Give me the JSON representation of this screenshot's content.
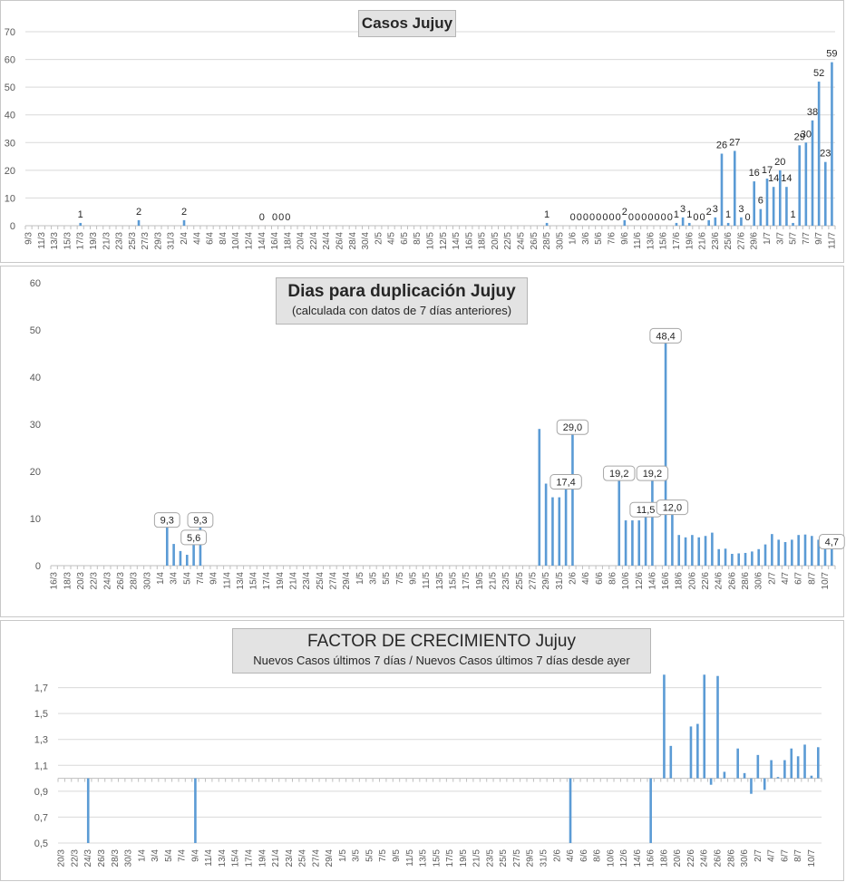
{
  "colors": {
    "bar": "#5b9bd5",
    "grid": "#d9d9d9",
    "axis_text": "#595959"
  },
  "chart_data": [
    {
      "type": "bar",
      "title": "Casos Jujuy",
      "ylim": [
        0,
        70
      ],
      "yticks": [
        0,
        10,
        20,
        30,
        40,
        50,
        60,
        70
      ],
      "grid": true,
      "x_start": "9/3",
      "x_end": "11/7",
      "xtick_labels": [
        "9/3",
        "11/3",
        "13/3",
        "15/3",
        "17/3",
        "19/3",
        "21/3",
        "23/3",
        "25/3",
        "27/3",
        "29/3",
        "31/3",
        "2/4",
        "4/4",
        "6/4",
        "8/4",
        "10/4",
        "12/4",
        "14/4",
        "16/4",
        "18/4",
        "20/4",
        "22/4",
        "24/4",
        "26/4",
        "28/4",
        "30/4",
        "2/5",
        "4/5",
        "6/5",
        "8/5",
        "10/5",
        "12/5",
        "14/5",
        "16/5",
        "18/5",
        "20/5",
        "22/5",
        "24/5",
        "26/5",
        "28/5",
        "30/5",
        "1/6",
        "3/6",
        "5/6",
        "7/6",
        "9/6",
        "11/6",
        "13/6",
        "15/6",
        "17/6",
        "19/6",
        "21/6",
        "23/6",
        "25/6",
        "27/6",
        "29/6",
        "1/7",
        "3/7",
        "5/7",
        "7/7",
        "9/7",
        "11/7"
      ],
      "points": [
        {
          "x": "17/3",
          "y": 1,
          "label": "1"
        },
        {
          "x": "26/3",
          "y": 2,
          "label": "2"
        },
        {
          "x": "2/4",
          "y": 2,
          "label": "2"
        },
        {
          "x": "14/4",
          "y": 0,
          "label": "0"
        },
        {
          "x": "16/4",
          "y": 0,
          "label": "0"
        },
        {
          "x": "17/4",
          "y": 0,
          "label": "0"
        },
        {
          "x": "18/4",
          "y": 0,
          "label": "0"
        },
        {
          "x": "28/5",
          "y": 1,
          "label": "1"
        },
        {
          "x": "1/6",
          "y": 0,
          "label": "0"
        },
        {
          "x": "2/6",
          "y": 0,
          "label": "0"
        },
        {
          "x": "3/6",
          "y": 0,
          "label": "0"
        },
        {
          "x": "4/6",
          "y": 0,
          "label": "0"
        },
        {
          "x": "5/6",
          "y": 0,
          "label": "0"
        },
        {
          "x": "6/6",
          "y": 0,
          "label": "0"
        },
        {
          "x": "7/6",
          "y": 0,
          "label": "0"
        },
        {
          "x": "8/6",
          "y": 0,
          "label": "0"
        },
        {
          "x": "9/6",
          "y": 2,
          "label": "2"
        },
        {
          "x": "10/6",
          "y": 0,
          "label": "0"
        },
        {
          "x": "11/6",
          "y": 0,
          "label": "0"
        },
        {
          "x": "12/6",
          "y": 0,
          "label": "0"
        },
        {
          "x": "13/6",
          "y": 0,
          "label": "0"
        },
        {
          "x": "14/6",
          "y": 0,
          "label": "0"
        },
        {
          "x": "15/6",
          "y": 0,
          "label": "0"
        },
        {
          "x": "16/6",
          "y": 0,
          "label": "0"
        },
        {
          "x": "17/6",
          "y": 1,
          "label": "1"
        },
        {
          "x": "18/6",
          "y": 3,
          "label": "3"
        },
        {
          "x": "19/6",
          "y": 1,
          "label": "1"
        },
        {
          "x": "20/6",
          "y": 0,
          "label": "0"
        },
        {
          "x": "21/6",
          "y": 0,
          "label": "0"
        },
        {
          "x": "22/6",
          "y": 2,
          "label": "2"
        },
        {
          "x": "23/6",
          "y": 3,
          "label": "3"
        },
        {
          "x": "24/6",
          "y": 26,
          "label": "26"
        },
        {
          "x": "25/6",
          "y": 1,
          "label": "1"
        },
        {
          "x": "26/6",
          "y": 27,
          "label": "27"
        },
        {
          "x": "27/6",
          "y": 3,
          "label": "3"
        },
        {
          "x": "28/6",
          "y": 0,
          "label": "0"
        },
        {
          "x": "29/6",
          "y": 16,
          "label": "16"
        },
        {
          "x": "30/6",
          "y": 6,
          "label": "6"
        },
        {
          "x": "1/7",
          "y": 17,
          "label": "17"
        },
        {
          "x": "2/7",
          "y": 14,
          "label": "14"
        },
        {
          "x": "3/7",
          "y": 20,
          "label": "20"
        },
        {
          "x": "4/7",
          "y": 14,
          "label": "14"
        },
        {
          "x": "5/7",
          "y": 1,
          "label": "1"
        },
        {
          "x": "6/7",
          "y": 29,
          "label": "29"
        },
        {
          "x": "7/7",
          "y": 30,
          "label": "30"
        },
        {
          "x": "8/7",
          "y": 38,
          "label": "38"
        },
        {
          "x": "9/7",
          "y": 52,
          "label": "52"
        },
        {
          "x": "10/7",
          "y": 23,
          "label": "23"
        },
        {
          "x": "11/7",
          "y": 59,
          "label": "59"
        }
      ]
    },
    {
      "type": "bar",
      "title": "Dias para duplicación Jujuy",
      "subtitle": "(calculada con datos de 7 días anteriores)",
      "ylim": [
        0,
        60
      ],
      "yticks": [
        0,
        10,
        20,
        30,
        40,
        50,
        60
      ],
      "grid": false,
      "x_start": "16/3",
      "x_end": "11/7",
      "xtick_labels": [
        "16/3",
        "18/3",
        "20/3",
        "22/3",
        "24/3",
        "26/3",
        "28/3",
        "30/3",
        "1/4",
        "3/4",
        "5/4",
        "7/4",
        "9/4",
        "11/4",
        "13/4",
        "15/4",
        "17/4",
        "19/4",
        "21/4",
        "23/4",
        "25/4",
        "27/4",
        "29/4",
        "1/5",
        "3/5",
        "5/5",
        "7/5",
        "9/5",
        "11/5",
        "13/5",
        "15/5",
        "17/5",
        "19/5",
        "21/5",
        "23/5",
        "25/5",
        "27/5",
        "29/5",
        "31/5",
        "2/6",
        "4/6",
        "6/6",
        "8/6",
        "10/6",
        "12/6",
        "14/6",
        "16/6",
        "18/6",
        "20/6",
        "22/6",
        "24/6",
        "26/6",
        "28/6",
        "30/6",
        "2/7",
        "4/7",
        "6/7",
        "8/7",
        "10/7"
      ],
      "points": [
        {
          "x": "2/4",
          "y": 9.3,
          "label": "9,3"
        },
        {
          "x": "3/4",
          "y": 4.6,
          "label": ""
        },
        {
          "x": "4/4",
          "y": 3.1,
          "label": ""
        },
        {
          "x": "5/4",
          "y": 2.3,
          "label": ""
        },
        {
          "x": "6/4",
          "y": 5.6,
          "label": "5,6"
        },
        {
          "x": "7/4",
          "y": 9.3,
          "label": "9,3"
        },
        {
          "x": "28/5",
          "y": 29.0,
          "label": ""
        },
        {
          "x": "29/5",
          "y": 17.4,
          "label": ""
        },
        {
          "x": "30/5",
          "y": 14.5,
          "label": ""
        },
        {
          "x": "31/5",
          "y": 14.5,
          "label": ""
        },
        {
          "x": "1/6",
          "y": 17.4,
          "label": "17,4"
        },
        {
          "x": "2/6",
          "y": 29.0,
          "label": "29,0"
        },
        {
          "x": "9/6",
          "y": 19.2,
          "label": "19,2"
        },
        {
          "x": "10/6",
          "y": 9.6,
          "label": ""
        },
        {
          "x": "11/6",
          "y": 9.6,
          "label": ""
        },
        {
          "x": "12/6",
          "y": 9.6,
          "label": ""
        },
        {
          "x": "13/6",
          "y": 11.5,
          "label": "11,5"
        },
        {
          "x": "14/6",
          "y": 19.2,
          "label": "19,2"
        },
        {
          "x": "16/6",
          "y": 48.4,
          "label": "48,4"
        },
        {
          "x": "17/6",
          "y": 12.0,
          "label": "12,0"
        },
        {
          "x": "18/6",
          "y": 6.5,
          "label": ""
        },
        {
          "x": "19/6",
          "y": 6.0,
          "label": ""
        },
        {
          "x": "20/6",
          "y": 6.5,
          "label": ""
        },
        {
          "x": "21/6",
          "y": 6.0,
          "label": ""
        },
        {
          "x": "22/6",
          "y": 6.3,
          "label": ""
        },
        {
          "x": "23/6",
          "y": 7.0,
          "label": ""
        },
        {
          "x": "24/6",
          "y": 3.5,
          "label": ""
        },
        {
          "x": "25/6",
          "y": 3.6,
          "label": ""
        },
        {
          "x": "26/6",
          "y": 2.5,
          "label": ""
        },
        {
          "x": "27/6",
          "y": 2.6,
          "label": ""
        },
        {
          "x": "28/6",
          "y": 2.7,
          "label": ""
        },
        {
          "x": "29/6",
          "y": 3.0,
          "label": ""
        },
        {
          "x": "30/6",
          "y": 3.5,
          "label": ""
        },
        {
          "x": "1/7",
          "y": 4.5,
          "label": ""
        },
        {
          "x": "2/7",
          "y": 6.7,
          "label": ""
        },
        {
          "x": "3/7",
          "y": 5.5,
          "label": ""
        },
        {
          "x": "4/7",
          "y": 5.0,
          "label": ""
        },
        {
          "x": "5/7",
          "y": 5.5,
          "label": ""
        },
        {
          "x": "6/7",
          "y": 6.5,
          "label": ""
        },
        {
          "x": "7/7",
          "y": 6.6,
          "label": ""
        },
        {
          "x": "8/7",
          "y": 6.3,
          "label": ""
        },
        {
          "x": "9/7",
          "y": 5.5,
          "label": ""
        },
        {
          "x": "10/7",
          "y": 5.0,
          "label": ""
        },
        {
          "x": "11/7",
          "y": 4.7,
          "label": "4,7"
        }
      ]
    },
    {
      "type": "bar",
      "title": "FACTOR DE CRECIMIENTO Jujuy",
      "subtitle": "Nuevos Casos últimos 7 días / Nuevos Casos últimos 7 días desde ayer",
      "ylim": [
        0.5,
        1.9
      ],
      "baseline": 1.0,
      "yticks": [
        0.5,
        0.7,
        0.9,
        1.1,
        1.3,
        1.5,
        1.7
      ],
      "ytick_labels": [
        "0,5",
        "0,7",
        "0,9",
        "1,1",
        "1,3",
        "1,5",
        "1,7"
      ],
      "grid": true,
      "x_start": "20/3",
      "x_end": "11/7",
      "xtick_labels": [
        "20/3",
        "22/3",
        "24/3",
        "26/3",
        "28/3",
        "30/3",
        "1/4",
        "3/4",
        "5/4",
        "7/4",
        "9/4",
        "11/4",
        "13/4",
        "15/4",
        "17/4",
        "19/4",
        "21/4",
        "23/4",
        "25/4",
        "27/4",
        "29/4",
        "1/5",
        "3/5",
        "5/5",
        "7/5",
        "9/5",
        "11/5",
        "13/5",
        "15/5",
        "17/5",
        "19/5",
        "21/5",
        "23/5",
        "25/5",
        "27/5",
        "29/5",
        "31/5",
        "2/6",
        "4/6",
        "6/6",
        "8/6",
        "10/6",
        "12/6",
        "14/6",
        "16/6",
        "18/6",
        "20/6",
        "22/6",
        "24/6",
        "26/6",
        "28/6",
        "30/6",
        "2/7",
        "4/7",
        "6/7",
        "8/7",
        "10/7"
      ],
      "points": [
        {
          "x": "24/3",
          "y": 0.5
        },
        {
          "x": "9/4",
          "y": 0.5
        },
        {
          "x": "4/6",
          "y": 0.5
        },
        {
          "x": "16/6",
          "y": 0.5
        },
        {
          "x": "18/6",
          "y": 1.8
        },
        {
          "x": "19/6",
          "y": 1.25
        },
        {
          "x": "22/6",
          "y": 1.4
        },
        {
          "x": "23/6",
          "y": 1.42
        },
        {
          "x": "24/6",
          "y": 1.8
        },
        {
          "x": "25/6",
          "y": 0.95
        },
        {
          "x": "26/6",
          "y": 1.79
        },
        {
          "x": "27/6",
          "y": 1.05
        },
        {
          "x": "29/6",
          "y": 1.23
        },
        {
          "x": "30/6",
          "y": 1.04
        },
        {
          "x": "1/7",
          "y": 0.88
        },
        {
          "x": "2/7",
          "y": 1.18
        },
        {
          "x": "3/7",
          "y": 0.91
        },
        {
          "x": "4/7",
          "y": 1.14
        },
        {
          "x": "5/7",
          "y": 1.01
        },
        {
          "x": "6/7",
          "y": 1.14
        },
        {
          "x": "7/7",
          "y": 1.23
        },
        {
          "x": "8/7",
          "y": 1.17
        },
        {
          "x": "9/7",
          "y": 1.26
        },
        {
          "x": "10/7",
          "y": 1.02
        },
        {
          "x": "11/7",
          "y": 1.24
        }
      ]
    }
  ]
}
